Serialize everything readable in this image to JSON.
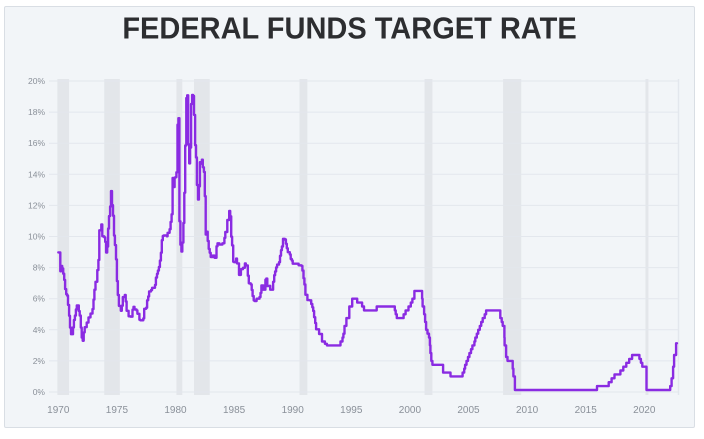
{
  "title": "FEDERAL FUNDS TARGET RATE",
  "colors": {
    "page_background": "#ffffff",
    "card_background": "#f2f5f8",
    "card_border": "#d9dee4",
    "title_text": "#2c2d30",
    "axis_label": "#8a9099",
    "gridline": "#e3e7ed",
    "recession_band": "#e3e6ea",
    "line": "#8a2be2"
  },
  "chart_data": {
    "type": "line",
    "title": "FEDERAL FUNDS TARGET RATE",
    "xlabel": "",
    "ylabel": "",
    "x_tick_labels": [
      "1970",
      "1975",
      "1980",
      "1985",
      "1990",
      "1995",
      "2000",
      "2005",
      "2010",
      "2015",
      "2020"
    ],
    "x_tick_years": [
      1970,
      1975,
      1980,
      1985,
      1990,
      1995,
      2000,
      2005,
      2010,
      2015,
      2020
    ],
    "y_tick_labels": [
      "0%",
      "2%",
      "4%",
      "6%",
      "8%",
      "10%",
      "12%",
      "14%",
      "16%",
      "18%",
      "20%"
    ],
    "y_tick_values": [
      0,
      2,
      4,
      6,
      8,
      10,
      12,
      14,
      16,
      18,
      20
    ],
    "ylim": [
      0,
      20
    ],
    "xlim": [
      1969.9,
      2022.95
    ],
    "grid": "horizontal",
    "legend": "none",
    "recession_bands": [
      [
        1969.92,
        1970.92
      ],
      [
        1973.92,
        1975.25
      ],
      [
        1980.08,
        1980.58
      ],
      [
        1981.58,
        1982.92
      ],
      [
        1990.58,
        1991.25
      ],
      [
        2001.25,
        2001.92
      ],
      [
        2007.95,
        2009.5
      ],
      [
        2020.1,
        2020.35
      ]
    ],
    "series": [
      {
        "name": "Federal funds target rate (%)",
        "interpolation": "step-after",
        "points": [
          [
            1970.0,
            8.98
          ],
          [
            1970.17,
            7.76
          ],
          [
            1970.25,
            8.1
          ],
          [
            1970.33,
            7.95
          ],
          [
            1970.42,
            7.61
          ],
          [
            1970.5,
            7.21
          ],
          [
            1970.58,
            6.62
          ],
          [
            1970.67,
            6.29
          ],
          [
            1970.75,
            6.2
          ],
          [
            1970.83,
            5.6
          ],
          [
            1970.92,
            4.9
          ],
          [
            1971.0,
            4.14
          ],
          [
            1971.08,
            3.72
          ],
          [
            1971.25,
            4.15
          ],
          [
            1971.33,
            4.63
          ],
          [
            1971.42,
            4.91
          ],
          [
            1971.5,
            5.31
          ],
          [
            1971.58,
            5.57
          ],
          [
            1971.75,
            5.2
          ],
          [
            1971.83,
            4.91
          ],
          [
            1971.92,
            4.14
          ],
          [
            1972.0,
            3.5
          ],
          [
            1972.08,
            3.29
          ],
          [
            1972.17,
            3.83
          ],
          [
            1972.25,
            4.17
          ],
          [
            1972.42,
            4.46
          ],
          [
            1972.58,
            4.8
          ],
          [
            1972.75,
            5.04
          ],
          [
            1972.92,
            5.33
          ],
          [
            1973.0,
            5.94
          ],
          [
            1973.08,
            6.58
          ],
          [
            1973.17,
            7.09
          ],
          [
            1973.33,
            7.84
          ],
          [
            1973.42,
            8.49
          ],
          [
            1973.5,
            10.4
          ],
          [
            1973.67,
            10.78
          ],
          [
            1973.75,
            10.01
          ],
          [
            1973.92,
            9.95
          ],
          [
            1974.0,
            9.65
          ],
          [
            1974.08,
            8.97
          ],
          [
            1974.17,
            9.35
          ],
          [
            1974.25,
            10.51
          ],
          [
            1974.33,
            11.31
          ],
          [
            1974.42,
            11.93
          ],
          [
            1974.5,
            12.92
          ],
          [
            1974.58,
            12.01
          ],
          [
            1974.67,
            11.34
          ],
          [
            1974.75,
            10.06
          ],
          [
            1974.83,
            9.45
          ],
          [
            1974.92,
            8.53
          ],
          [
            1975.0,
            7.13
          ],
          [
            1975.08,
            6.24
          ],
          [
            1975.17,
            5.54
          ],
          [
            1975.33,
            5.22
          ],
          [
            1975.42,
            5.55
          ],
          [
            1975.5,
            6.1
          ],
          [
            1975.67,
            6.24
          ],
          [
            1975.75,
            5.82
          ],
          [
            1975.83,
            5.22
          ],
          [
            1976.0,
            4.87
          ],
          [
            1976.17,
            4.84
          ],
          [
            1976.33,
            5.29
          ],
          [
            1976.42,
            5.48
          ],
          [
            1976.5,
            5.31
          ],
          [
            1976.67,
            5.25
          ],
          [
            1976.75,
            5.03
          ],
          [
            1976.92,
            4.65
          ],
          [
            1977.0,
            4.61
          ],
          [
            1977.25,
            4.73
          ],
          [
            1977.33,
            5.35
          ],
          [
            1977.5,
            5.42
          ],
          [
            1977.58,
            5.9
          ],
          [
            1977.67,
            6.14
          ],
          [
            1977.75,
            6.47
          ],
          [
            1977.92,
            6.56
          ],
          [
            1978.0,
            6.7
          ],
          [
            1978.25,
            6.89
          ],
          [
            1978.33,
            7.36
          ],
          [
            1978.42,
            7.6
          ],
          [
            1978.5,
            7.81
          ],
          [
            1978.58,
            8.04
          ],
          [
            1978.67,
            8.45
          ],
          [
            1978.75,
            8.96
          ],
          [
            1978.83,
            9.76
          ],
          [
            1978.92,
            10.03
          ],
          [
            1979.0,
            10.07
          ],
          [
            1979.25,
            10.01
          ],
          [
            1979.33,
            10.24
          ],
          [
            1979.5,
            10.47
          ],
          [
            1979.58,
            10.94
          ],
          [
            1979.67,
            11.43
          ],
          [
            1979.75,
            13.77
          ],
          [
            1979.83,
            13.18
          ],
          [
            1979.92,
            13.78
          ],
          [
            1980.0,
            13.82
          ],
          [
            1980.08,
            14.13
          ],
          [
            1980.17,
            17.19
          ],
          [
            1980.25,
            17.61
          ],
          [
            1980.33,
            10.98
          ],
          [
            1980.42,
            9.47
          ],
          [
            1980.5,
            9.03
          ],
          [
            1980.58,
            9.61
          ],
          [
            1980.67,
            10.87
          ],
          [
            1980.75,
            12.81
          ],
          [
            1980.83,
            15.85
          ],
          [
            1980.92,
            18.9
          ],
          [
            1981.0,
            19.08
          ],
          [
            1981.08,
            15.93
          ],
          [
            1981.17,
            14.7
          ],
          [
            1981.25,
            15.72
          ],
          [
            1981.33,
            18.52
          ],
          [
            1981.42,
            19.1
          ],
          [
            1981.5,
            19.04
          ],
          [
            1981.58,
            17.82
          ],
          [
            1981.67,
            15.87
          ],
          [
            1981.75,
            15.08
          ],
          [
            1981.83,
            13.31
          ],
          [
            1981.92,
            12.37
          ],
          [
            1982.0,
            13.22
          ],
          [
            1982.08,
            14.78
          ],
          [
            1982.17,
            14.68
          ],
          [
            1982.25,
            14.94
          ],
          [
            1982.33,
            14.45
          ],
          [
            1982.42,
            14.15
          ],
          [
            1982.5,
            12.59
          ],
          [
            1982.58,
            10.12
          ],
          [
            1982.67,
            10.31
          ],
          [
            1982.75,
            9.71
          ],
          [
            1982.83,
            9.2
          ],
          [
            1982.92,
            8.95
          ],
          [
            1983.0,
            8.68
          ],
          [
            1983.17,
            8.77
          ],
          [
            1983.33,
            8.63
          ],
          [
            1983.5,
            9.37
          ],
          [
            1983.58,
            9.56
          ],
          [
            1983.75,
            9.48
          ],
          [
            1984.0,
            9.56
          ],
          [
            1984.17,
            9.91
          ],
          [
            1984.25,
            10.29
          ],
          [
            1984.42,
            11.06
          ],
          [
            1984.58,
            11.64
          ],
          [
            1984.67,
            11.3
          ],
          [
            1984.75,
            9.99
          ],
          [
            1984.83,
            9.43
          ],
          [
            1984.92,
            8.38
          ],
          [
            1985.0,
            8.35
          ],
          [
            1985.17,
            8.58
          ],
          [
            1985.25,
            8.27
          ],
          [
            1985.42,
            7.53
          ],
          [
            1985.58,
            7.9
          ],
          [
            1985.75,
            7.99
          ],
          [
            1985.92,
            8.27
          ],
          [
            1986.0,
            8.14
          ],
          [
            1986.17,
            7.48
          ],
          [
            1986.25,
            6.99
          ],
          [
            1986.42,
            6.92
          ],
          [
            1986.5,
            6.56
          ],
          [
            1986.58,
            6.17
          ],
          [
            1986.67,
            5.89
          ],
          [
            1986.75,
            5.85
          ],
          [
            1986.92,
            6.0
          ],
          [
            1987.17,
            6.1
          ],
          [
            1987.25,
            6.37
          ],
          [
            1987.33,
            6.85
          ],
          [
            1987.5,
            6.58
          ],
          [
            1987.67,
            7.22
          ],
          [
            1987.75,
            7.29
          ],
          [
            1987.83,
            6.81
          ],
          [
            1988.0,
            6.83
          ],
          [
            1988.08,
            6.58
          ],
          [
            1988.33,
            7.09
          ],
          [
            1988.42,
            7.51
          ],
          [
            1988.5,
            7.75
          ],
          [
            1988.58,
            8.01
          ],
          [
            1988.67,
            8.19
          ],
          [
            1988.83,
            8.35
          ],
          [
            1988.92,
            8.76
          ],
          [
            1989.0,
            9.12
          ],
          [
            1989.08,
            9.36
          ],
          [
            1989.17,
            9.85
          ],
          [
            1989.33,
            9.81
          ],
          [
            1989.42,
            9.53
          ],
          [
            1989.5,
            9.24
          ],
          [
            1989.58,
            8.99
          ],
          [
            1989.75,
            8.84
          ],
          [
            1989.83,
            8.55
          ],
          [
            1989.92,
            8.45
          ],
          [
            1990.0,
            8.25
          ],
          [
            1990.5,
            8.15
          ],
          [
            1990.75,
            8.11
          ],
          [
            1990.83,
            7.81
          ],
          [
            1990.92,
            7.31
          ],
          [
            1991.0,
            6.91
          ],
          [
            1991.08,
            6.25
          ],
          [
            1991.25,
            5.91
          ],
          [
            1991.42,
            5.9
          ],
          [
            1991.58,
            5.66
          ],
          [
            1991.67,
            5.45
          ],
          [
            1991.75,
            5.21
          ],
          [
            1991.83,
            4.81
          ],
          [
            1991.92,
            4.43
          ],
          [
            1992.0,
            4.03
          ],
          [
            1992.25,
            3.73
          ],
          [
            1992.5,
            3.25
          ],
          [
            1992.75,
            3.1
          ],
          [
            1992.92,
            3.0
          ],
          [
            1994.08,
            3.25
          ],
          [
            1994.25,
            3.5
          ],
          [
            1994.33,
            3.75
          ],
          [
            1994.42,
            4.25
          ],
          [
            1994.58,
            4.75
          ],
          [
            1994.83,
            5.5
          ],
          [
            1995.08,
            6.0
          ],
          [
            1995.5,
            5.75
          ],
          [
            1995.92,
            5.5
          ],
          [
            1996.08,
            5.25
          ],
          [
            1997.17,
            5.5
          ],
          [
            1998.71,
            5.25
          ],
          [
            1998.79,
            5.0
          ],
          [
            1998.88,
            4.75
          ],
          [
            1999.46,
            5.0
          ],
          [
            1999.63,
            5.25
          ],
          [
            1999.88,
            5.5
          ],
          [
            2000.08,
            5.75
          ],
          [
            2000.21,
            6.0
          ],
          [
            2000.38,
            6.5
          ],
          [
            2001.04,
            6.0
          ],
          [
            2001.08,
            5.5
          ],
          [
            2001.21,
            5.0
          ],
          [
            2001.3,
            4.5
          ],
          [
            2001.38,
            4.0
          ],
          [
            2001.5,
            3.75
          ],
          [
            2001.63,
            3.5
          ],
          [
            2001.71,
            3.0
          ],
          [
            2001.75,
            2.5
          ],
          [
            2001.83,
            2.0
          ],
          [
            2001.92,
            1.75
          ],
          [
            2002.83,
            1.25
          ],
          [
            2003.46,
            1.0
          ],
          [
            2004.5,
            1.25
          ],
          [
            2004.63,
            1.5
          ],
          [
            2004.71,
            1.75
          ],
          [
            2004.83,
            2.0
          ],
          [
            2004.96,
            2.25
          ],
          [
            2005.08,
            2.5
          ],
          [
            2005.21,
            2.75
          ],
          [
            2005.33,
            3.0
          ],
          [
            2005.5,
            3.25
          ],
          [
            2005.58,
            3.5
          ],
          [
            2005.71,
            3.75
          ],
          [
            2005.83,
            4.0
          ],
          [
            2005.96,
            4.25
          ],
          [
            2006.08,
            4.5
          ],
          [
            2006.21,
            4.75
          ],
          [
            2006.38,
            5.0
          ],
          [
            2006.5,
            5.25
          ],
          [
            2007.71,
            4.75
          ],
          [
            2007.83,
            4.5
          ],
          [
            2007.92,
            4.25
          ],
          [
            2008.06,
            3.5
          ],
          [
            2008.08,
            3.0
          ],
          [
            2008.21,
            2.25
          ],
          [
            2008.33,
            2.0
          ],
          [
            2008.77,
            1.5
          ],
          [
            2008.83,
            1.0
          ],
          [
            2008.96,
            0.13
          ],
          [
            2015.96,
            0.38
          ],
          [
            2016.96,
            0.63
          ],
          [
            2017.21,
            0.88
          ],
          [
            2017.46,
            1.13
          ],
          [
            2017.96,
            1.38
          ],
          [
            2018.21,
            1.63
          ],
          [
            2018.46,
            1.88
          ],
          [
            2018.71,
            2.13
          ],
          [
            2018.96,
            2.38
          ],
          [
            2019.58,
            2.13
          ],
          [
            2019.71,
            1.88
          ],
          [
            2019.83,
            1.63
          ],
          [
            2020.19,
            0.13
          ],
          [
            2022.21,
            0.38
          ],
          [
            2022.33,
            0.88
          ],
          [
            2022.46,
            1.63
          ],
          [
            2022.54,
            2.38
          ],
          [
            2022.71,
            3.13
          ],
          [
            2022.79,
            3.13
          ]
        ]
      }
    ]
  }
}
